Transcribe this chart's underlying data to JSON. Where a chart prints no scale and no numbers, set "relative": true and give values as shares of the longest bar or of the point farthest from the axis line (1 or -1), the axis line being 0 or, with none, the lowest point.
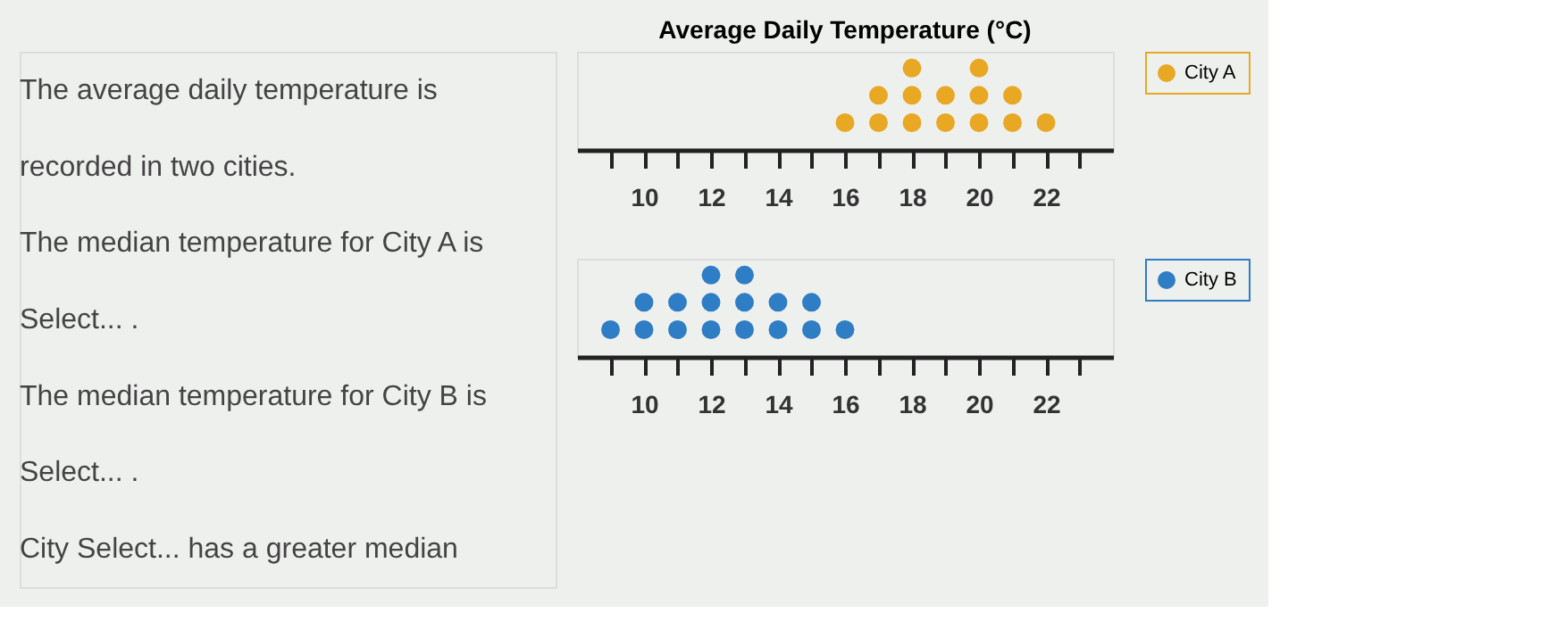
{
  "chart_data": [
    {
      "type": "scatter",
      "title": "Average Daily Temperature (°C)",
      "annotations": [
        "The average daily temperature is",
        "recorded in two cities.",
        "The median temperature for City A is",
        "Select... .",
        "The median temperature for City B is",
        "Select... .",
        "City  Select...  has a greater median"
      ],
      "series": [
        {
          "name": "City A",
          "color": "#e8a824",
          "x": [
            16,
            17,
            17,
            18,
            18,
            18,
            19,
            19,
            20,
            20,
            20,
            21,
            21,
            22
          ],
          "values": [
            0.333,
            0.333,
            0.667,
            0.333,
            0.667,
            1,
            0.333,
            0.667,
            0.333,
            0.667,
            1,
            0.333,
            0.667,
            0.333
          ]
        }
      ],
      "xlim": [
        8,
        24
      ],
      "relative": true,
      "xticks": [
        {
          "value": 9,
          "label": null
        },
        10,
        {
          "value": 11,
          "label": null
        },
        12,
        {
          "value": 13,
          "label": null
        },
        14,
        {
          "value": 15,
          "label": null
        },
        16,
        {
          "value": 17,
          "label": null
        },
        18,
        {
          "value": 19,
          "label": null
        },
        20,
        {
          "value": 21,
          "label": null
        },
        22,
        {
          "value": 23,
          "label": null
        }
      ],
      "tick_labels": "x",
      "marker": "circle",
      "legend": "right",
      "grid": false
    },
    {
      "type": "scatter",
      "series": [
        {
          "name": "City B",
          "color": "#2f7dc4",
          "x": [
            9,
            10,
            10,
            11,
            11,
            12,
            12,
            12,
            13,
            13,
            13,
            14,
            14,
            15,
            15,
            16
          ],
          "values": [
            0.333,
            0.333,
            0.667,
            0.333,
            0.667,
            0.333,
            0.667,
            1,
            0.333,
            0.667,
            1,
            0.333,
            0.667,
            0.333,
            0.667,
            0.333
          ]
        }
      ],
      "xlim": [
        8,
        24
      ],
      "relative": true,
      "xticks": [
        {
          "value": 9,
          "label": null
        },
        10,
        {
          "value": 11,
          "label": null
        },
        12,
        {
          "value": 13,
          "label": null
        },
        14,
        {
          "value": 15,
          "label": null
        },
        16,
        {
          "value": 17,
          "label": null
        },
        18,
        {
          "value": 19,
          "label": null
        },
        20,
        {
          "value": 21,
          "label": null
        },
        22,
        {
          "value": 23,
          "label": null
        }
      ],
      "tick_labels": "x",
      "marker": "circle",
      "legend": "right",
      "grid": false
    }
  ]
}
